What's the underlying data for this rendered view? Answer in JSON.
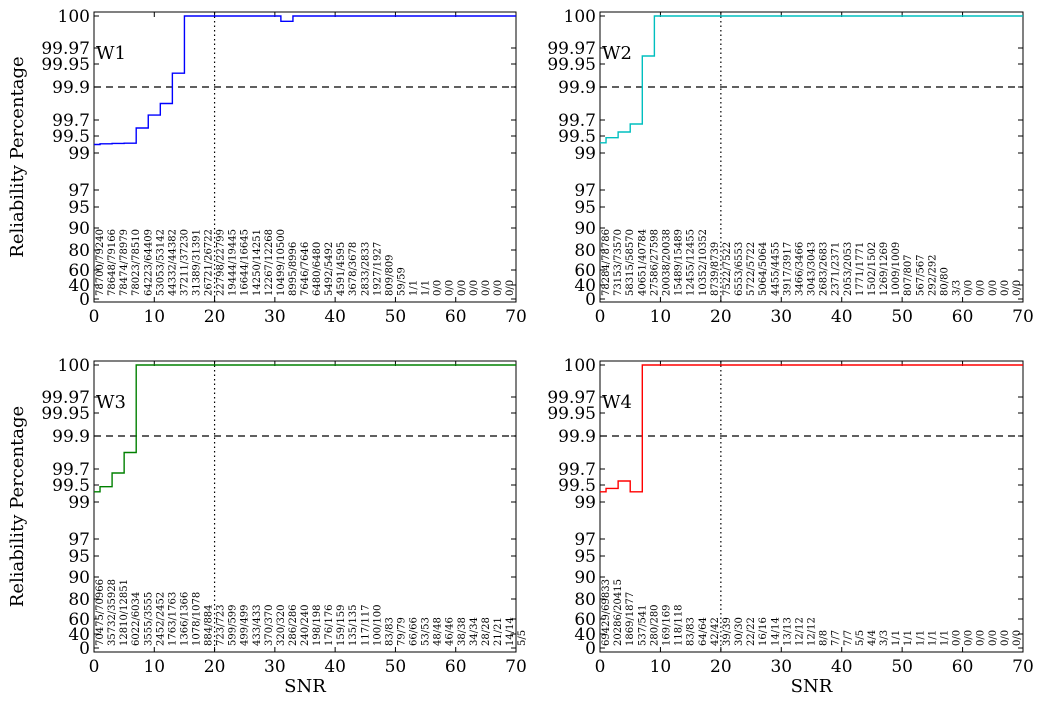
{
  "figure": {
    "ylabel": "Reliability Percentage",
    "xlabel": "SNR"
  },
  "chart_data": [
    {
      "type": "line",
      "panel_label": "W1",
      "color": "#0000ff",
      "xlim": [
        0,
        70
      ],
      "xticks": [
        0,
        10,
        20,
        30,
        40,
        50,
        60,
        70
      ],
      "yticks": [
        0,
        40,
        60,
        80,
        90,
        95,
        97,
        99,
        99.5,
        99.7,
        99.9,
        99.95,
        99.97,
        100
      ],
      "ylabel": "Reliability Percentage",
      "xlabel": "",
      "hline": 99.9,
      "vline": 20,
      "series": [
        {
          "x": [
            0,
            1,
            3,
            5,
            7,
            9,
            11,
            13,
            15,
            17,
            19,
            21,
            23,
            25,
            27,
            29,
            31,
            33,
            35,
            70
          ],
          "y": [
            99.25,
            99.27,
            99.28,
            99.29,
            99.6,
            99.73,
            99.8,
            99.93,
            100,
            100,
            100,
            100,
            100,
            100,
            100,
            100,
            99.995,
            100,
            100,
            100
          ]
        }
      ],
      "annotations": [
        "78700/79240",
        "78648/79166",
        "78474/78979",
        "78023/78510",
        "64223/64409",
        "53053/53142",
        "44332/44382",
        "37211/37230",
        "31389/31391",
        "26721/26722",
        "22798/22799",
        "19444/19445",
        "16644/16645",
        "14250/14251",
        "12267/12268",
        "10499/10500",
        "8995/8996",
        "7646/7646",
        "6480/6480",
        "5492/5492",
        "4591/4595",
        "3678/3678",
        "2833/2833",
        "1927/1927",
        "809/809",
        "59/59",
        "1/1",
        "1/1",
        "0/0",
        "0/0",
        "0/0",
        "0/0",
        "0/0",
        "0/0",
        "0/0"
      ]
    },
    {
      "type": "line",
      "panel_label": "W2",
      "color": "#00bfbf",
      "xlim": [
        0,
        70
      ],
      "xticks": [
        0,
        10,
        20,
        30,
        40,
        50,
        60,
        70
      ],
      "yticks": [
        0,
        40,
        60,
        80,
        90,
        95,
        97,
        99,
        99.5,
        99.7,
        99.9,
        99.95,
        99.97,
        100
      ],
      "ylabel": "",
      "xlabel": "",
      "hline": 99.9,
      "vline": 20,
      "series": [
        {
          "x": [
            0,
            1,
            3,
            5,
            7,
            9,
            70
          ],
          "y": [
            99.3,
            99.45,
            99.55,
            99.65,
            99.96,
            100,
            100
          ]
        }
      ],
      "annotations": [
        "78284/78786",
        "73153/73570",
        "58315/58570",
        "40651/40784",
        "27586/27598",
        "20038/20038",
        "15489/15489",
        "12455/12455",
        "10352/10352",
        "8739/8739",
        "7522/7522",
        "6553/6553",
        "5722/5722",
        "5064/5064",
        "4455/4455",
        "3917/3917",
        "3466/3466",
        "3043/3043",
        "2683/2683",
        "2371/2371",
        "2053/2053",
        "1771/1771",
        "1502/1502",
        "1269/1269",
        "1009/1009",
        "807/807",
        "567/567",
        "292/292",
        "80/80",
        "3/3",
        "0/0",
        "0/0",
        "0/0",
        "0/0",
        "0/0"
      ]
    },
    {
      "type": "line",
      "panel_label": "W3",
      "color": "#008000",
      "xlim": [
        0,
        70
      ],
      "xticks": [
        0,
        10,
        20,
        30,
        40,
        50,
        60,
        70
      ],
      "yticks": [
        0,
        40,
        60,
        80,
        90,
        95,
        97,
        99,
        99.5,
        99.7,
        99.9,
        99.95,
        99.97,
        100
      ],
      "ylabel": "Reliability Percentage",
      "xlabel": "SNR",
      "hline": 99.9,
      "vline": 20,
      "series": [
        {
          "x": [
            0,
            1,
            3,
            5,
            7,
            70
          ],
          "y": [
            99.3,
            99.45,
            99.65,
            99.8,
            100,
            100
          ]
        }
      ],
      "annotations": [
        "70475/70966",
        "35732/35928",
        "12810/12851",
        "6022/6034",
        "3555/3555",
        "2452/2452",
        "1763/1763",
        "1366/1366",
        "1078/1078",
        "884/884",
        "723/723",
        "599/599",
        "499/499",
        "433/433",
        "370/370",
        "320/320",
        "286/286",
        "240/240",
        "198/198",
        "176/176",
        "159/159",
        "135/135",
        "117/117",
        "100/100",
        "83/83",
        "79/79",
        "66/66",
        "53/53",
        "48/48",
        "46/46",
        "38/38",
        "34/34",
        "28/28",
        "21/21",
        "14/14",
        "5/5"
      ]
    },
    {
      "type": "line",
      "panel_label": "W4",
      "color": "#ff0000",
      "xlim": [
        0,
        70
      ],
      "xticks": [
        0,
        10,
        20,
        30,
        40,
        50,
        60,
        70
      ],
      "yticks": [
        0,
        40,
        60,
        80,
        90,
        95,
        97,
        99,
        99.5,
        99.7,
        99.9,
        99.95,
        99.97,
        100
      ],
      "ylabel": "",
      "xlabel": "SNR",
      "hline": 99.9,
      "vline": 20,
      "series": [
        {
          "x": [
            0,
            1,
            3,
            5,
            7,
            70
          ],
          "y": [
            99.3,
            99.4,
            99.55,
            99.3,
            100,
            100
          ]
        }
      ],
      "annotations": [
        "69429/69833",
        "20286/20415",
        "1869/1877",
        "537/541",
        "280/280",
        "169/169",
        "118/118",
        "83/83",
        "64/64",
        "42/42",
        "39/39",
        "30/30",
        "22/22",
        "16/16",
        "14/14",
        "13/13",
        "12/12",
        "12/12",
        "8/8",
        "7/7",
        "7/7",
        "5/5",
        "4/4",
        "3/3",
        "1/1",
        "1/1",
        "1/1",
        "1/1",
        "1/1",
        "0/0",
        "0/0",
        "0/0",
        "0/0",
        "0/0",
        "0/0"
      ]
    }
  ]
}
